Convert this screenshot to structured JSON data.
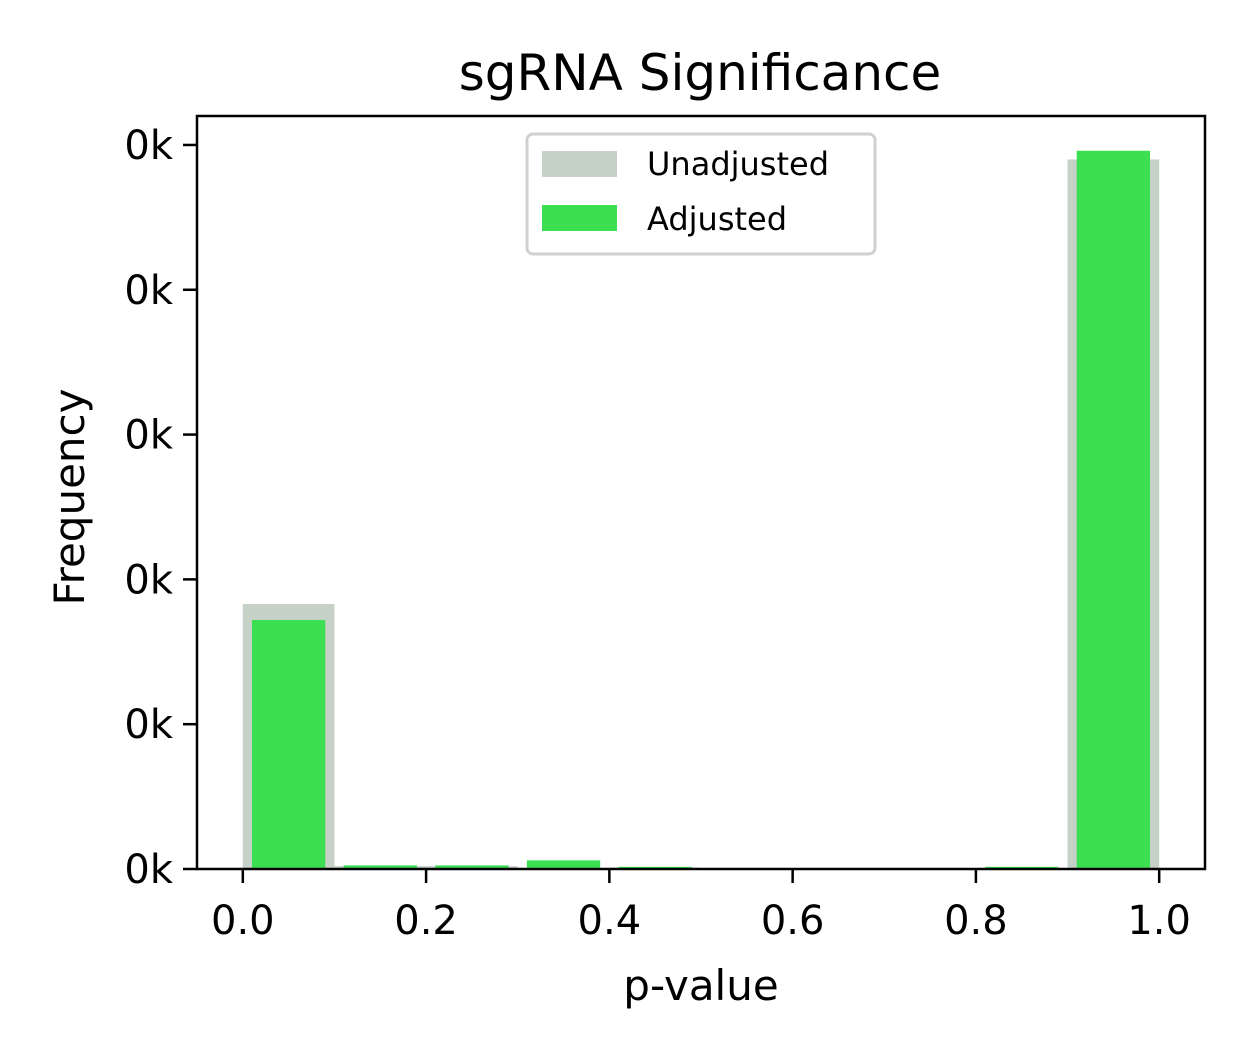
{
  "chart_data": {
    "type": "bar",
    "title": "sgRNA Significance",
    "xlabel": "p-value",
    "ylabel": "Frequency",
    "xlim": [
      -0.05,
      1.05
    ],
    "ylim": [
      0,
      1.04
    ],
    "grid": false,
    "legend_position": "top-center",
    "x_ticks": [
      {
        "value": 0.0,
        "label": "0.0"
      },
      {
        "value": 0.2,
        "label": "0.2"
      },
      {
        "value": 0.4,
        "label": "0.4"
      },
      {
        "value": 0.6,
        "label": "0.6"
      },
      {
        "value": 0.8,
        "label": "0.8"
      },
      {
        "value": 1.0,
        "label": "1.0"
      }
    ],
    "y_ticks": [
      {
        "value": 0.0,
        "label": "0k"
      },
      {
        "value": 0.2,
        "label": "0k"
      },
      {
        "value": 0.4,
        "label": "0k"
      },
      {
        "value": 0.6,
        "label": "0k"
      },
      {
        "value": 0.8,
        "label": "0k"
      },
      {
        "value": 1.0,
        "label": "0k"
      }
    ],
    "bin_edges": [
      0.0,
      0.1,
      0.2,
      0.3,
      0.4,
      0.5,
      0.6,
      0.7,
      0.8,
      0.9,
      1.0
    ],
    "series": [
      {
        "name": "Unadjusted",
        "color": "#c6d1c8",
        "values": [
          0.366,
          0.004,
          0.004,
          0.0,
          0.002,
          0.0,
          0.0,
          0.0,
          0.0,
          0.98
        ]
      },
      {
        "name": "Adjusted",
        "color": "#3ddf52",
        "values": [
          0.344,
          0.005,
          0.005,
          0.012,
          0.003,
          0.0,
          0.0,
          0.0,
          0.003,
          0.992
        ]
      }
    ]
  }
}
